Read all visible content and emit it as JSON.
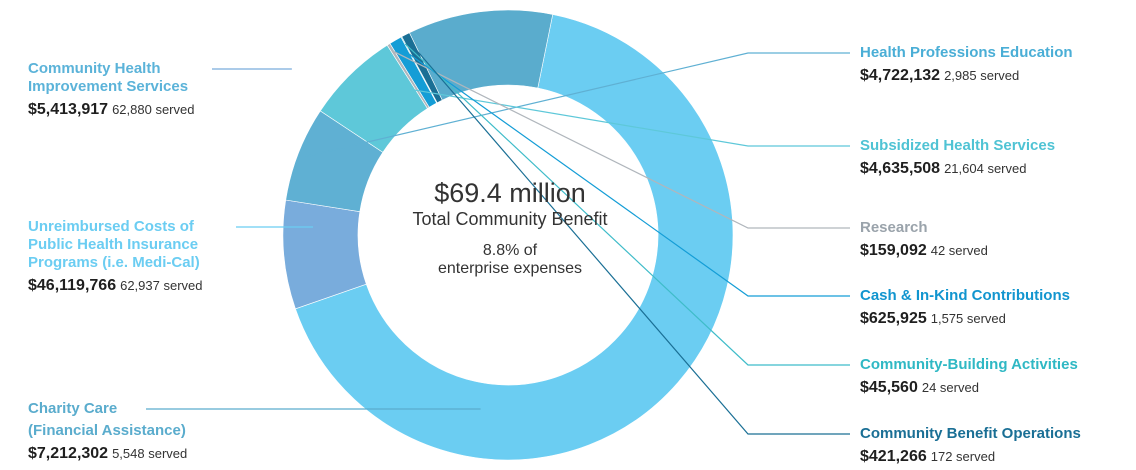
{
  "center": {
    "total": "$69.4 million",
    "label": "Total Community Benefit",
    "pct_line1": "8.8% of",
    "pct_line2": "enterprise expenses"
  },
  "chart_data": {
    "type": "pie",
    "title": "",
    "series": [
      {
        "name": "Unreimbursed Costs of Public Health Insurance Programs (i.e. Medi-Cal)",
        "value": 46119766,
        "served": "62,937 served",
        "color": "#6bcdf2"
      },
      {
        "name": "Community Health Improvement Services",
        "value": 5413917,
        "served": "62,880 served",
        "color": "#79acdc"
      },
      {
        "name": "Health Professions Education",
        "value": 4722132,
        "served": "2,985 served",
        "color": "#5fb0d3"
      },
      {
        "name": "Subsidized Health Services",
        "value": 4635508,
        "served": "21,604 served",
        "color": "#5ec8d9"
      },
      {
        "name": "Research",
        "value": 159092,
        "served": "42 served",
        "color": "#b0b6bc"
      },
      {
        "name": "Cash & In-Kind Contributions",
        "value": 625925,
        "served": "1,575 served",
        "color": "#149dd6"
      },
      {
        "name": "Community-Building Activities",
        "value": 45560,
        "served": "24 served",
        "color": "#3fbcc9"
      },
      {
        "name": "Community Benefit Operations",
        "value": 421266,
        "served": "172 served",
        "color": "#1a6f95"
      },
      {
        "name": "Charity Care (Financial Assistance)",
        "value": 7212302,
        "served": "5,548 served",
        "color": "#5aaccd"
      }
    ]
  },
  "labels": {
    "community_health": {
      "line1": "Community Health",
      "line2": "Improvement Services",
      "amount": "$5,413,917",
      "served": "62,880 served",
      "color": "#5bb3d9"
    },
    "unreimbursed": {
      "line1": "Unreimbursed Costs of",
      "line2": "Public Health Insurance",
      "line3": "Programs (i.e. Medi-Cal)",
      "amount": "$46,119,766",
      "served": "62,937 served",
      "color": "#6bcdf2"
    },
    "charity": {
      "line1": "Charity Care",
      "line2": "(Financial Assistance)",
      "amount": "$7,212,302",
      "served": "5,548 served",
      "color": "#5aaccd"
    },
    "health_prof": {
      "line1": "Health Professions Education",
      "amount": "$4,722,132",
      "served": "2,985 served",
      "color": "#4aaed6"
    },
    "subsidized": {
      "line1": "Subsidized Health Services",
      "amount": "$4,635,508",
      "served": "21,604 served",
      "color": "#4fc3d4"
    },
    "research": {
      "line1": "Research",
      "amount": "$159,092",
      "served": "42 served",
      "color": "#9aa3ab"
    },
    "cash": {
      "line1": "Cash & In-Kind Contributions",
      "amount": "$625,925",
      "served": "1,575 served",
      "color": "#1195cf"
    },
    "building": {
      "line1": "Community-Building Activities",
      "amount": "$45,560",
      "served": "24 served",
      "color": "#2fb8c4"
    },
    "operations": {
      "line1": "Community Benefit Operations",
      "amount": "$421,266",
      "served": "172 served",
      "color": "#1a6f95"
    }
  }
}
